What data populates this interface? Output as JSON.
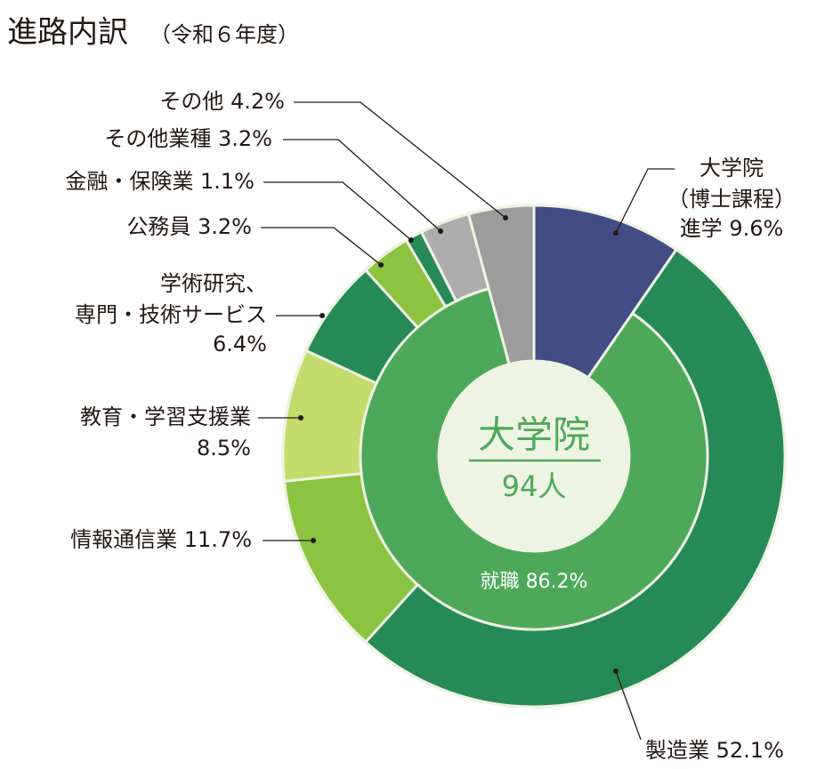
{
  "chart_data": {
    "type": "nested-donut",
    "title": "進路内訳",
    "subtitle": "（令和６年度）",
    "center_label": "大学院",
    "center_value": "94人",
    "labels": [
      [
        "大学院",
        "（博士課程）",
        "進学"
      ],
      [
        "製造業"
      ],
      [
        "情報通信業"
      ],
      [
        "教育・学習支援業"
      ],
      [
        "学術研究、",
        "専門・技術サービス"
      ],
      [
        "公務員"
      ],
      [
        "金融・保険業"
      ],
      [
        "その他業種"
      ],
      [
        "その他"
      ]
    ],
    "values": [
      9.6,
      52.1,
      11.7,
      8.5,
      6.4,
      3.2,
      1.1,
      3.2,
      4.2
    ],
    "value_labels": [
      "9.6%",
      "52.1%",
      "11.7%",
      "8.5%",
      "6.4%",
      "3.2%",
      "1.1%",
      "3.2%",
      "4.2%"
    ],
    "colors": [
      "#414d84",
      "#268a56",
      "#8cc341",
      "#c3dc6c",
      "#268a56",
      "#8cc341",
      "#268a56",
      "#acacac",
      "#9c9c9c"
    ],
    "full_depth": [
      true,
      false,
      false,
      false,
      false,
      false,
      false,
      false,
      true
    ],
    "inner": {
      "name": "就職",
      "values": [
        86.2
      ],
      "value_labels": [
        "86.2%"
      ],
      "color": "#4ea85a"
    }
  }
}
